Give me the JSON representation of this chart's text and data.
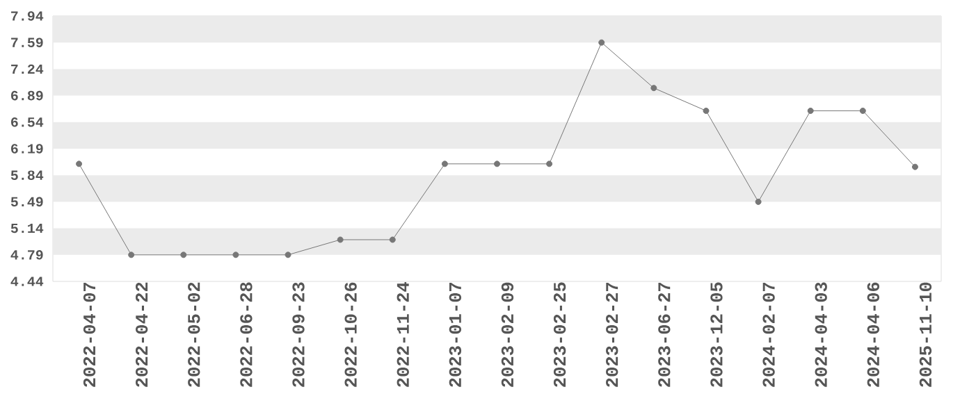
{
  "chart_data": {
    "type": "line",
    "categories": [
      "2022-04-07",
      "2022-04-22",
      "2022-05-02",
      "2022-06-28",
      "2022-09-23",
      "2022-10-26",
      "2022-11-24",
      "2023-01-07",
      "2023-02-09",
      "2023-02-25",
      "2023-02-27",
      "2023-06-27",
      "2023-12-05",
      "2024-02-07",
      "2024-04-03",
      "2024-04-06",
      "2025-11-10"
    ],
    "series": [
      {
        "color": "#777777",
        "values": [
          5.99,
          4.79,
          4.79,
          4.79,
          4.79,
          4.99,
          4.99,
          5.99,
          5.99,
          5.99,
          7.59,
          6.99,
          6.69,
          5.49,
          6.69,
          6.69,
          5.95
        ]
      }
    ],
    "ylim": [
      4.44,
      7.94
    ],
    "yticks": [
      4.44,
      4.79,
      5.14,
      5.49,
      5.84,
      6.19,
      6.54,
      6.89,
      7.24,
      7.59,
      7.94
    ],
    "bands": [
      {
        "axis": "y",
        "from": 4.79,
        "to": 5.14,
        "color": "#ebebeb"
      },
      {
        "axis": "y",
        "from": 5.49,
        "to": 5.84,
        "color": "#ebebeb"
      },
      {
        "axis": "y",
        "from": 6.19,
        "to": 6.54,
        "color": "#ebebeb"
      },
      {
        "axis": "y",
        "from": 6.89,
        "to": 7.24,
        "color": "#ebebeb"
      },
      {
        "axis": "y",
        "from": 7.59,
        "to": 7.94,
        "color": "#ebebeb"
      }
    ],
    "marker": "circle",
    "line_style": "solid"
  }
}
